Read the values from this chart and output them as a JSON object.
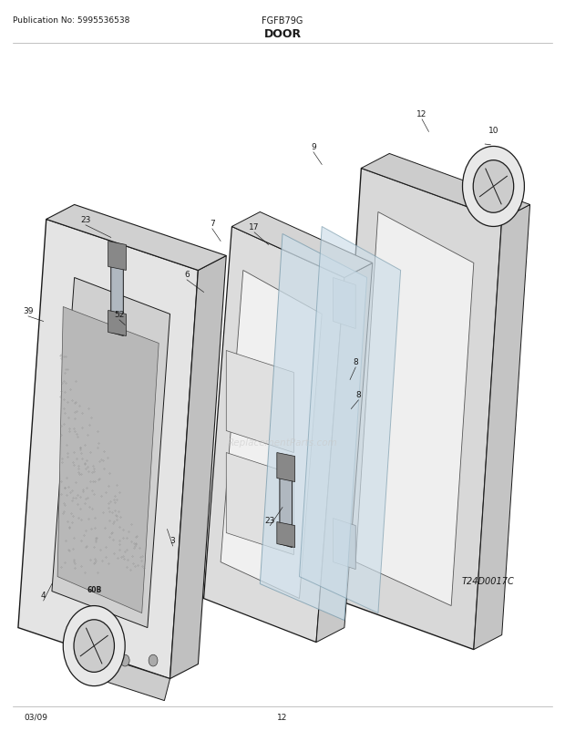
{
  "pub_no": "Publication No: 5995536538",
  "model": "FGFB79G",
  "section": "DOOR",
  "diagram_code": "T24D0017C",
  "date": "03/09",
  "page": "12",
  "bg_color": "#ffffff",
  "fig_width": 6.2,
  "fig_height": 8.03
}
